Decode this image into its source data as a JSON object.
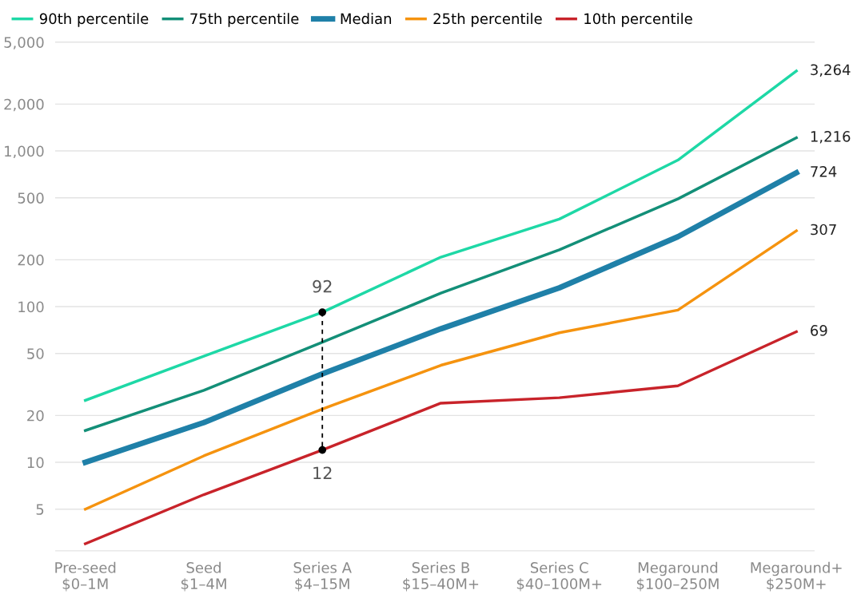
{
  "chart_data": {
    "type": "line",
    "categories": [
      "Pre-seed\n$0–1M",
      "Seed\n$1–4M",
      "Series A\n$4–15M",
      "Series B\n$15–40M+",
      "Series C\n$40–100M+",
      "Megaround\n$100–250M",
      "Megaround+\n$250M+"
    ],
    "series": [
      {
        "name": "90th percentile",
        "color": "#1ed8a6",
        "values": [
          25,
          48,
          92,
          208,
          365,
          873,
          3264
        ],
        "value_labels": [
          null,
          null,
          null,
          null,
          null,
          null,
          "3,264"
        ]
      },
      {
        "name": "75th percentile",
        "color": "#138f78",
        "values": [
          16,
          29,
          59,
          122,
          232,
          492,
          1216
        ],
        "value_labels": [
          null,
          null,
          null,
          null,
          null,
          null,
          "1,216"
        ]
      },
      {
        "name": "Median",
        "color": "#1f80a8",
        "values": [
          10,
          18,
          37,
          72,
          132,
          281,
          724
        ],
        "value_labels": [
          null,
          null,
          null,
          null,
          null,
          null,
          "724"
        ]
      },
      {
        "name": "25th percentile",
        "color": "#f5930f",
        "values": [
          5,
          11,
          22,
          42,
          68,
          95,
          307
        ],
        "value_labels": [
          null,
          null,
          null,
          null,
          null,
          null,
          "307"
        ]
      },
      {
        "name": "10th percentile",
        "color": "#c8232a",
        "values": [
          3,
          6.2,
          12,
          24,
          26,
          31,
          69
        ],
        "value_labels": [
          null,
          null,
          null,
          null,
          null,
          null,
          "69"
        ]
      }
    ],
    "log": "y",
    "ylim": [
      2.7,
      5000
    ],
    "yticks": [
      5,
      10,
      20,
      50,
      100,
      200,
      500,
      {
        "value": 1000,
        "label": "1,000"
      },
      {
        "value": 2000,
        "label": "2,000"
      },
      {
        "value": 5000,
        "label": "5,000"
      }
    ],
    "grid": "y",
    "legend": "top left",
    "marker": "none",
    "line_style": "solid",
    "annotations": [
      {
        "text": "92",
        "x": "Series A\n$4–15M",
        "y": 92
      },
      {
        "text": "12",
        "x": "Series A\n$4–15M",
        "y": 12
      }
    ]
  }
}
